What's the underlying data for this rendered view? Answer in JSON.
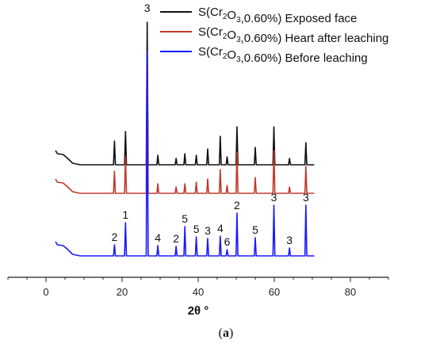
{
  "chart_data": {
    "type": "line",
    "xlabel": "2θ °",
    "caption_prefix": "(",
    "caption_letter": "a",
    "caption_suffix": ")",
    "xlim": [
      -10,
      90
    ],
    "xticks": [
      0,
      20,
      40,
      60,
      80
    ],
    "grid": false,
    "legend_position": "top-right",
    "series": [
      {
        "name": "S(Cr2O3,0.60%) Exposed face",
        "legend": {
          "pre": "S(Cr",
          "s1": "2",
          "mid": "O",
          "s2": "3",
          "post": ",0.60%) Exposed face"
        },
        "color": "#111111"
      },
      {
        "name": "S(Cr2O3,0.60%) Heart after leaching",
        "legend": {
          "pre": "S(Cr",
          "s1": "2",
          "mid": "O",
          "s2": "3",
          "post": ",0.60%) Heart after leaching"
        },
        "color": "#c0392b"
      },
      {
        "name": "S(Cr2O3,0.60%) Before leaching",
        "legend": {
          "pre": "S(Cr",
          "s1": "2",
          "mid": "O",
          "s2": "3",
          "post": ",0.60%) Before leaching"
        },
        "color": "#1a1aff"
      }
    ],
    "peaks": [
      {
        "x": 18.0,
        "label": "2"
      },
      {
        "x": 20.9,
        "label": "1"
      },
      {
        "x": 26.6,
        "label": "3"
      },
      {
        "x": 29.4,
        "label": "4"
      },
      {
        "x": 34.2,
        "label": "2"
      },
      {
        "x": 36.5,
        "label": "5"
      },
      {
        "x": 39.5,
        "label": "5"
      },
      {
        "x": 42.5,
        "label": "3"
      },
      {
        "x": 45.8,
        "label": "4"
      },
      {
        "x": 47.6,
        "label": "6"
      },
      {
        "x": 50.2,
        "label": "2"
      },
      {
        "x": 55.0,
        "label": "5"
      },
      {
        "x": 59.9,
        "label": "3"
      },
      {
        "x": 64.0,
        "label": "3"
      },
      {
        "x": 68.3,
        "label": "3"
      }
    ]
  }
}
